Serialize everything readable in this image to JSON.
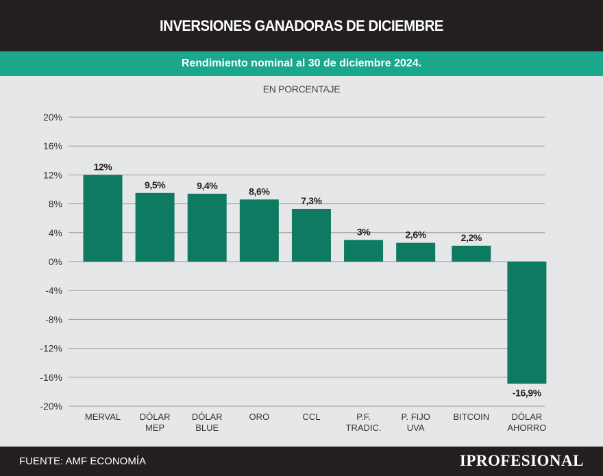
{
  "header": {
    "title": "INVERSIONES GANADORAS DE DICIEMBRE"
  },
  "subheader": {
    "subtitle": "Rendimiento nominal al 30 de diciembre 2024."
  },
  "footer": {
    "source": "FUENTE: AMF ECONOMÍA",
    "logo": "IPROFESIONAL"
  },
  "colors": {
    "bar": "#0e7a61",
    "header_bg": "#231f20",
    "accent": "#1ba88a",
    "background": "#e6e7e8"
  },
  "chart_data": {
    "type": "bar",
    "ylabel": "EN PORCENTAJE",
    "ylim": [
      -20,
      20
    ],
    "yticks": [
      20,
      16,
      12,
      8,
      4,
      0,
      -4,
      -8,
      -12,
      -16,
      -20
    ],
    "ytick_labels": [
      "20%",
      "16%",
      "12%",
      "8%",
      "4%",
      "0%",
      "-4%",
      "-8%",
      "-12%",
      "-16%",
      "-20%"
    ],
    "grid": true,
    "categories": [
      [
        "MERVAL"
      ],
      [
        "DÓLAR",
        "MEP"
      ],
      [
        "DÓLAR",
        "BLUE"
      ],
      [
        "ORO"
      ],
      [
        "CCL"
      ],
      [
        "P.F.",
        "TRADIC."
      ],
      [
        "P. FIJO",
        "UVA"
      ],
      [
        "BITCOIN"
      ],
      [
        "DÓLAR",
        "AHORRO"
      ]
    ],
    "values": [
      12,
      9.5,
      9.4,
      8.6,
      7.3,
      3,
      2.6,
      2.2,
      -16.9
    ],
    "value_labels": [
      "12%",
      "9,5%",
      "9,4%",
      "8,6%",
      "7,3%",
      "3%",
      "2,6%",
      "2,2%",
      "-16,9%"
    ]
  }
}
